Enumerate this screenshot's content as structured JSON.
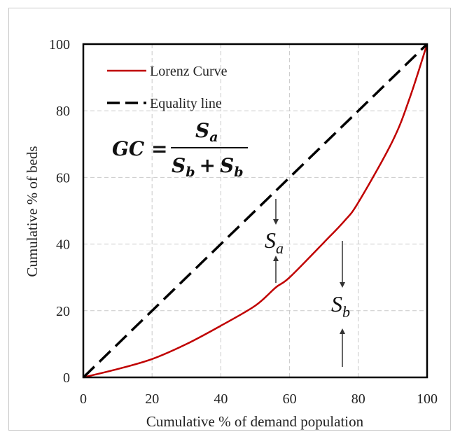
{
  "chart_data": {
    "type": "line",
    "xlabel": "Cumulative % of demand population",
    "ylabel": "Cumulative % of beds",
    "xlim": [
      0,
      100
    ],
    "ylim": [
      0,
      100
    ],
    "x_ticks": [
      0,
      20,
      40,
      60,
      80,
      100
    ],
    "y_ticks": [
      0,
      20,
      40,
      60,
      80,
      100
    ],
    "grid": true,
    "legend_position": "top-left",
    "series": [
      {
        "name": "Lorenz Curve",
        "style": "solid",
        "color": "#c00000",
        "x": [
          0,
          10,
          20,
          30,
          40,
          50,
          56,
          60,
          70,
          76,
          80,
          90,
          95,
          100
        ],
        "y": [
          0,
          2.5,
          5.5,
          10,
          15.5,
          21.5,
          27,
          30,
          40.5,
          47,
          52.5,
          71,
          84,
          100
        ]
      },
      {
        "name": "Equality line",
        "style": "dashed",
        "color": "#000000",
        "x": [
          0,
          100
        ],
        "y": [
          0,
          100
        ]
      }
    ],
    "formula": {
      "lhs": "GC =",
      "numerator_main": "S",
      "numerator_sub": "a",
      "denominator_left_main": "S",
      "denominator_left_sub": "b",
      "denominator_op": "+",
      "denominator_right_main": "S",
      "denominator_right_sub": "b"
    },
    "annotations": [
      {
        "main": "S",
        "sub": "a",
        "x": 56.5,
        "y": 40
      },
      {
        "main": "S",
        "sub": "b",
        "x": 76,
        "y": 21
      }
    ]
  }
}
